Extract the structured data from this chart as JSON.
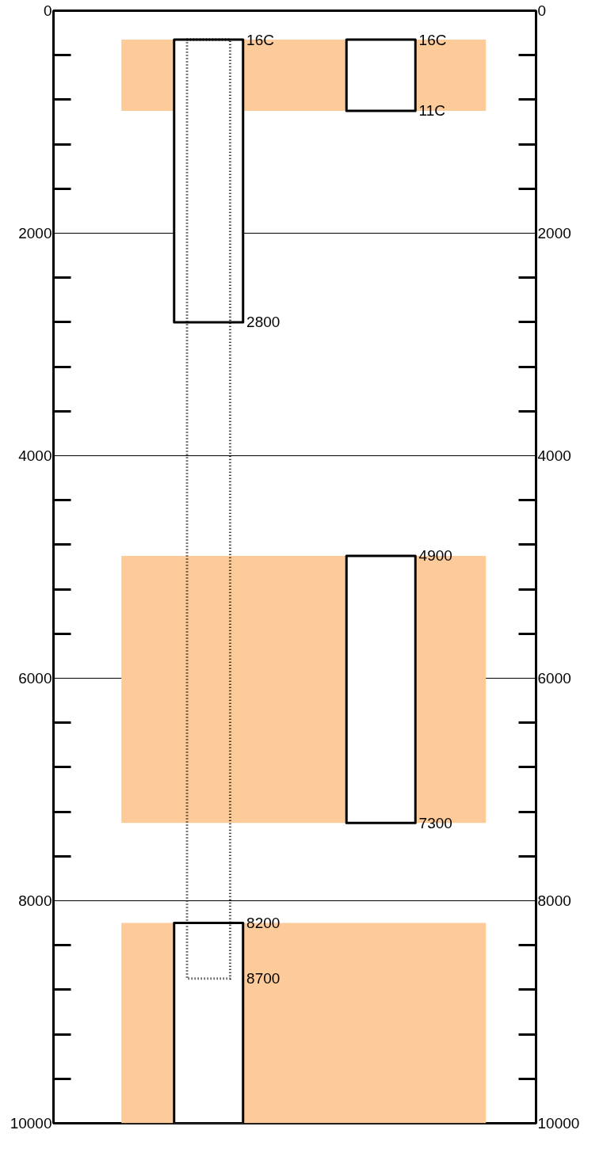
{
  "chart_data": {
    "type": "bar",
    "categories": [
      null,
      null
    ],
    "series": [
      {
        "color": "#ffffff",
        "values": [
          2540,
          640
        ],
        "base": [
          260,
          260
        ],
        "line_style": "solid"
      },
      {
        "color": "#ffffff",
        "values": [
          1800,
          2400
        ],
        "base": [
          8200,
          4900
        ],
        "line_style": "solid"
      },
      {
        "color": "#000000",
        "values": [
          8440,
          null
        ],
        "base": [
          260,
          null
        ],
        "line_style": "dotted"
      }
    ],
    "ylim": [
      10000,
      0
    ],
    "yticks": [
      0,
      2000,
      4000,
      6000,
      8000,
      10000
    ],
    "y2lim": [
      10000,
      0
    ],
    "y2ticks": [
      0,
      2000,
      4000,
      6000,
      8000,
      10000
    ],
    "grid": "y",
    "bands": [
      {
        "axis": "y",
        "from": 260,
        "to": 900,
        "color": "#fdcb9a"
      },
      {
        "axis": "y",
        "from": 4900,
        "to": 7300,
        "color": "#fdcb9a"
      },
      {
        "axis": "y",
        "from": 8200,
        "to": 10000,
        "color": "#fdcb9a"
      }
    ],
    "annotations": [
      {
        "text": "16C",
        "y": 260
      },
      {
        "text": "16C",
        "y": 260
      },
      "2800",
      {
        "text": "11C",
        "y": 900
      },
      {
        "text": "4900",
        "y": 4900
      },
      {
        "text": "7300",
        "y": 7300
      },
      {
        "text": "8200",
        "y": 8200
      },
      "8700"
    ]
  }
}
